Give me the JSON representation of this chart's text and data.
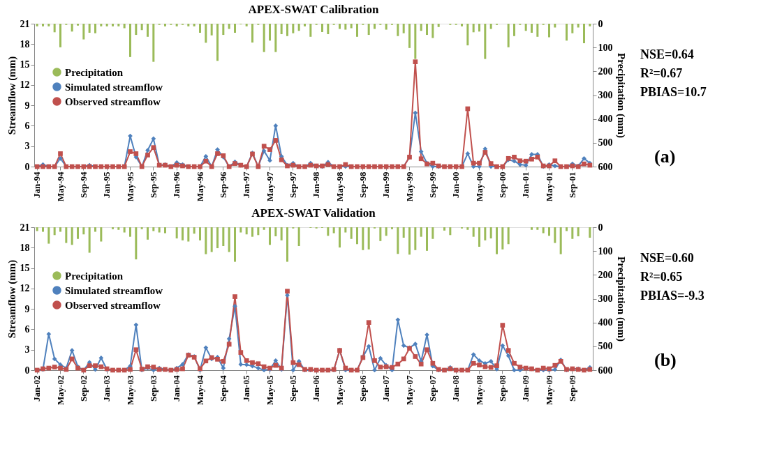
{
  "chart_data": [
    {
      "type": "line",
      "title": "APEX-SWAT Calibration",
      "ylabel": "Streamflow (mm)",
      "y2label": "Precipitation (mm)",
      "categories": [
        "Jan-94",
        null,
        null,
        null,
        "May-94",
        null,
        null,
        null,
        "Sep-94",
        null,
        null,
        null,
        "Jan-95",
        null,
        null,
        null,
        "May-95",
        null,
        null,
        null,
        "Sep-95",
        null,
        null,
        null,
        "Jan-96",
        null,
        null,
        null,
        "May-96",
        null,
        null,
        null,
        "Sep-96",
        null,
        null,
        null,
        "Jan-97",
        null,
        null,
        null,
        "May-97",
        null,
        null,
        null,
        "Sep-97",
        null,
        null,
        null,
        "Jan-98",
        null,
        null,
        null,
        "May-98",
        null,
        null,
        null,
        "Sep-98",
        null,
        null,
        null,
        "Jan-99",
        null,
        null,
        null,
        "May-99",
        null,
        null,
        null,
        "Sep-99",
        null,
        null,
        null,
        "Jan-00",
        null,
        null,
        null,
        "May-00",
        null,
        null,
        null,
        "Sep-00",
        null,
        null,
        null,
        "Jan-01",
        null,
        null,
        null,
        "May-01",
        null,
        null,
        null,
        "Sep-01",
        null,
        null,
        null
      ],
      "series": [
        {
          "name": "Precipitation",
          "type": "bar",
          "axis": "y2",
          "color": "#9bbb59",
          "values": [
            11,
            11,
            11,
            36,
            99,
            5,
            33,
            8,
            66,
            38,
            40,
            11,
            11,
            11,
            11,
            19,
            140,
            47,
            27,
            55,
            160,
            5,
            11,
            5,
            11,
            5,
            11,
            11,
            38,
            80,
            49,
            156,
            47,
            22,
            38,
            3,
            11,
            79,
            5,
            119,
            71,
            119,
            44,
            52,
            40,
            30,
            11,
            55,
            5,
            35,
            44,
            5,
            22,
            25,
            19,
            55,
            5,
            47,
            22,
            5,
            25,
            5,
            52,
            40,
            102,
            148,
            30,
            47,
            60,
            14,
            0,
            5,
            5,
            11,
            91,
            36,
            33,
            148,
            22,
            5,
            0,
            99,
            52,
            5,
            30,
            38,
            55,
            5,
            57,
            16,
            0,
            71,
            40,
            16,
            82,
            11
          ]
        },
        {
          "name": "Simulated streamflow",
          "marker": "diamond",
          "color": "#4f81bd",
          "values": [
            0,
            0.3,
            0,
            0,
            1.2,
            0,
            0,
            0,
            0,
            0.2,
            0,
            0,
            0,
            0,
            0,
            0,
            4.5,
            1.4,
            0,
            2.4,
            4.1,
            0.2,
            0.3,
            0,
            0.6,
            0.3,
            0,
            0,
            0,
            1.5,
            0,
            2.5,
            1.4,
            0,
            0.7,
            0.2,
            0,
            2.0,
            0,
            2.3,
            0.9,
            6.0,
            1.5,
            0.2,
            0.5,
            0,
            0,
            0.5,
            0.1,
            0,
            0.65,
            0,
            0,
            0,
            0,
            0,
            0,
            0,
            0,
            0,
            0,
            0,
            0,
            0,
            1.4,
            7.9,
            2.2,
            0.5,
            0,
            0,
            0,
            0,
            0,
            0,
            1.9,
            0,
            0,
            2.6,
            0,
            0,
            0,
            1.0,
            0.8,
            0.3,
            0.2,
            1.8,
            1.8,
            0,
            0.3,
            0.1,
            0,
            0,
            0.4,
            0.1,
            1.2,
            0.5
          ]
        },
        {
          "name": "Observed streamflow",
          "marker": "square",
          "color": "#c0504d",
          "values": [
            0,
            0,
            0,
            0,
            1.9,
            0,
            0,
            0,
            0,
            0,
            0,
            0,
            0,
            0,
            0,
            0,
            2.2,
            1.9,
            0,
            1.7,
            2.8,
            0.2,
            0.2,
            0,
            0.2,
            0.1,
            0,
            0,
            0,
            0.8,
            0,
            1.9,
            1.6,
            0,
            0.45,
            0.2,
            0,
            1.85,
            0,
            3.0,
            2.5,
            3.85,
            1.0,
            0.1,
            0.2,
            0,
            0,
            0.2,
            0.1,
            0.1,
            0.3,
            0,
            0,
            0.3,
            0,
            0,
            0,
            0,
            0,
            0,
            0,
            0,
            0,
            0,
            1.4,
            15.4,
            1.15,
            0.4,
            0.5,
            0.1,
            0,
            0,
            0,
            0,
            8.5,
            0.5,
            0.5,
            2.1,
            0.45,
            0,
            0,
            1.2,
            1.4,
            0.85,
            0.8,
            1.1,
            1.4,
            0.1,
            0.1,
            0.85,
            0,
            0,
            0.1,
            0,
            0.4,
            0.2
          ]
        }
      ],
      "ylim": [
        0,
        21
      ],
      "yticks": [
        0,
        3,
        6,
        9,
        12,
        15,
        18,
        21
      ],
      "y2lim": [
        600,
        0
      ],
      "y2ticks": [
        0,
        100,
        200,
        300,
        400,
        500,
        600
      ],
      "legend": "top left",
      "line_style": "solid",
      "annotations": [
        "NSE=0.64",
        "R²=0.67",
        "PBIAS=10.7",
        "(a)"
      ]
    },
    {
      "type": "line",
      "title": "APEX-SWAT Validation",
      "ylabel": "Streamflow (mm)",
      "y2label": "Precipitation (mm)",
      "categories": [
        "Jan-02",
        null,
        null,
        null,
        "May-02",
        null,
        null,
        null,
        "Sep-02",
        null,
        null,
        null,
        "Jan-03",
        null,
        null,
        null,
        "May-03",
        null,
        null,
        null,
        "Sep-03",
        null,
        null,
        null,
        "Jan-04",
        null,
        null,
        null,
        "May-04",
        null,
        null,
        null,
        "Sep-04",
        null,
        null,
        null,
        "Jan-05",
        null,
        null,
        null,
        "May-05",
        null,
        null,
        null,
        "Sep-05",
        null,
        null,
        null,
        "Jan-06",
        null,
        null,
        null,
        "May-06",
        null,
        null,
        null,
        "Sep-06",
        null,
        null,
        null,
        "Jan-07",
        null,
        null,
        null,
        "May-07",
        null,
        null,
        null,
        "Sep-07",
        null,
        null,
        null,
        "Jan-08",
        null,
        null,
        null,
        "May-08",
        null,
        null,
        null,
        "Sep-08",
        null,
        null,
        null,
        "Jan-09",
        null,
        null,
        null,
        "May-09",
        null,
        null,
        null,
        "Sep-09",
        null,
        null,
        null
      ],
      "series": [
        {
          "name": "Precipitation",
          "type": "bar",
          "axis": "y2",
          "color": "#9bbb59",
          "values": [
            16,
            19,
            69,
            33,
            19,
            66,
            74,
            49,
            30,
            107,
            19,
            60,
            0,
            8,
            11,
            22,
            40,
            135,
            8,
            52,
            16,
            22,
            25,
            0,
            47,
            55,
            60,
            27,
            55,
            113,
            104,
            88,
            79,
            104,
            145,
            22,
            30,
            40,
            33,
            11,
            74,
            38,
            55,
            145,
            5,
            79,
            0,
            3,
            5,
            3,
            36,
            25,
            85,
            22,
            49,
            71,
            96,
            93,
            5,
            58,
            36,
            8,
            112,
            44,
            115,
            96,
            40,
            99,
            49,
            0,
            14,
            33,
            0,
            5,
            11,
            40,
            82,
            55,
            47,
            113,
            93,
            71,
            0,
            0,
            0,
            11,
            11,
            25,
            36,
            66,
            113,
            16,
            49,
            38,
            0,
            44
          ]
        },
        {
          "name": "Simulated streamflow",
          "marker": "diamond",
          "color": "#4f81bd",
          "values": [
            0,
            0.1,
            5.3,
            1.65,
            0.8,
            0.3,
            2.9,
            0.5,
            0,
            1.15,
            0.1,
            1.8,
            0.1,
            0,
            0,
            0,
            0.6,
            6.65,
            0,
            0.3,
            0,
            0.3,
            0.1,
            0,
            0.3,
            0.85,
            2.3,
            2.0,
            0,
            3.3,
            1.65,
            1.9,
            0.3,
            4.6,
            9.4,
            0.85,
            0.8,
            0.6,
            0.3,
            0,
            0.1,
            1.4,
            0.1,
            11.0,
            0,
            1.3,
            0,
            0,
            0,
            0,
            0,
            0,
            2.95,
            0,
            0,
            0,
            1.95,
            3.5,
            0,
            1.75,
            0.7,
            0,
            7.4,
            3.6,
            3.3,
            3.85,
            1.3,
            5.2,
            0.6,
            0,
            0,
            0.4,
            0,
            0,
            0,
            2.3,
            1.4,
            1.0,
            1.3,
            0.15,
            3.6,
            2.1,
            0,
            0,
            0.3,
            0.2,
            0,
            0,
            0,
            0.1,
            1.5,
            0,
            0.2,
            0.2,
            0,
            0.4
          ]
        },
        {
          "name": "Observed streamflow",
          "marker": "square",
          "color": "#c0504d",
          "values": [
            0,
            0.2,
            0.3,
            0.45,
            0.3,
            0.1,
            1.65,
            0.3,
            0,
            0.65,
            0.65,
            0.5,
            0.2,
            0,
            0,
            0,
            0.1,
            3.0,
            0.15,
            0.5,
            0.45,
            0.1,
            0.1,
            0,
            0.1,
            0.2,
            2.2,
            1.9,
            0.2,
            1.35,
            1.85,
            1.6,
            1.3,
            3.8,
            10.8,
            2.6,
            1.4,
            1.1,
            0.95,
            0.5,
            0.3,
            0.7,
            0.3,
            11.6,
            1.1,
            0.8,
            0.1,
            0.1,
            0,
            0,
            0,
            0.1,
            2.9,
            0.3,
            0,
            0,
            1.85,
            7.0,
            1.4,
            0.45,
            0.5,
            0.4,
            0.9,
            1.65,
            3.2,
            2.0,
            0.9,
            3.0,
            1.0,
            0.1,
            0,
            0.2,
            0,
            0,
            0,
            1.0,
            0.75,
            0.5,
            0.4,
            0.65,
            6.6,
            2.9,
            1.0,
            0.45,
            0.3,
            0.2,
            0,
            0.3,
            0.2,
            0.7,
            1.3,
            0.1,
            0.2,
            0.1,
            0,
            0.1
          ]
        }
      ],
      "ylim": [
        0,
        21
      ],
      "yticks": [
        0,
        3,
        6,
        9,
        12,
        15,
        18,
        21
      ],
      "y2lim": [
        600,
        0
      ],
      "y2ticks": [
        0,
        100,
        200,
        300,
        400,
        500,
        600
      ],
      "legend": "top left",
      "line_style": "solid",
      "annotations": [
        "NSE=0.60",
        "R²=0.65",
        "PBIAS=-9.3",
        "(b)"
      ]
    }
  ]
}
